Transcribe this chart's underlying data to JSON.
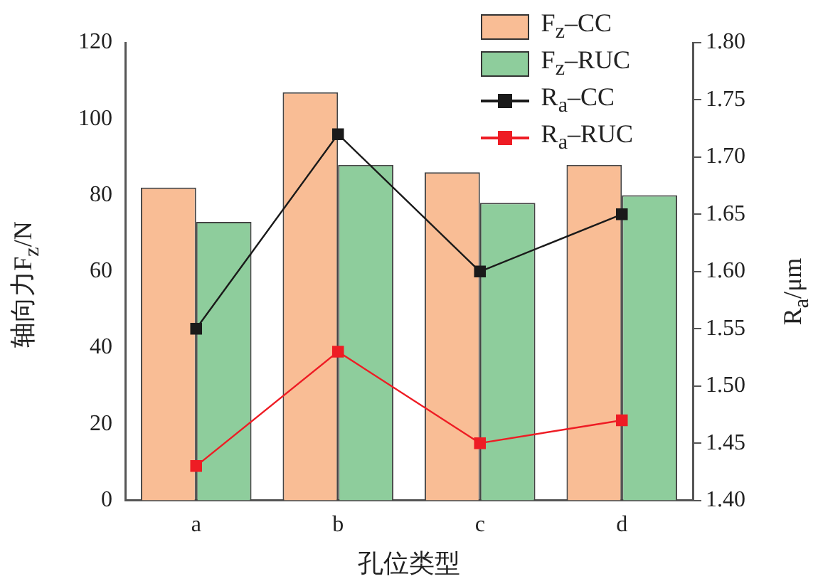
{
  "chart_data": {
    "type": "bar",
    "categories": [
      "a",
      "b",
      "c",
      "d"
    ],
    "xlabel": "孔位类型",
    "ylabel": "轴向力F$_{z}$/N",
    "y2label": "R$_{a}$/μm",
    "series": [
      {
        "name": "F$_{z}$–CC",
        "color": "#f9bd95",
        "values": [
          82,
          107,
          86,
          88
        ]
      },
      {
        "name": "F$_{z}$–RUC",
        "color": "#8ecd9c",
        "values": [
          73,
          88,
          78,
          80
        ]
      },
      {
        "name": "R$_{a}$–CC",
        "type": "line",
        "axis": "y2",
        "color": "#1a1a1a",
        "values": [
          1.55,
          1.72,
          1.6,
          1.65
        ]
      },
      {
        "name": "R$_{a}$–RUC",
        "type": "line",
        "axis": "y2",
        "color": "#ee1c24",
        "values": [
          1.43,
          1.53,
          1.45,
          1.47
        ]
      }
    ],
    "ylim": [
      0,
      120
    ],
    "yticks": [
      0,
      20,
      40,
      60,
      80,
      100,
      120
    ],
    "y2lim": [
      1.4,
      1.8
    ],
    "y2ticks": [
      {
        "value": 1.4,
        "label": "1.40"
      },
      {
        "value": 1.45,
        "label": "1.45"
      },
      {
        "value": 1.5,
        "label": "1.50"
      },
      {
        "value": 1.55,
        "label": "1.55"
      },
      {
        "value": 1.6,
        "label": "1.60"
      },
      {
        "value": 1.65,
        "label": "1.65"
      },
      {
        "value": 1.7,
        "label": "1.70"
      },
      {
        "value": 1.75,
        "label": "1.75"
      },
      {
        "value": 1.8,
        "label": "1.80"
      }
    ],
    "marker": "square",
    "line_style": "solid",
    "grid": false,
    "legend": "top right"
  }
}
